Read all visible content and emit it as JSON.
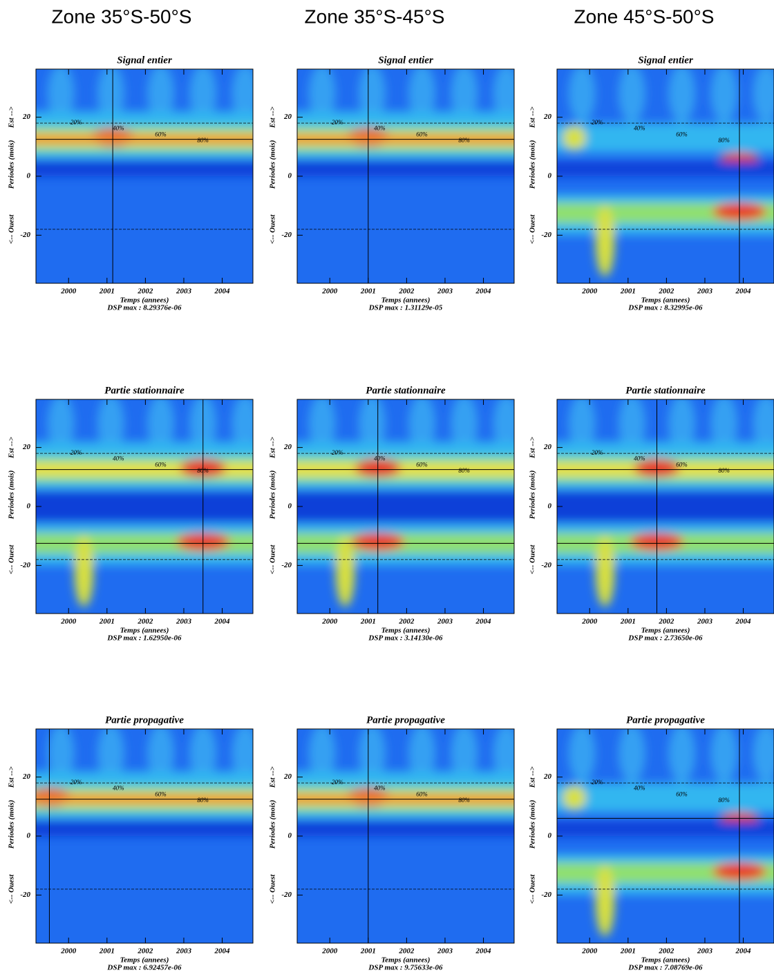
{
  "columns": [
    "Zone 35°S-50°S",
    "Zone 35°S-45°S",
    "Zone 45°S-50°S"
  ],
  "axes": {
    "xlim": [
      1999.15,
      2004.8
    ],
    "xticks": [
      2000,
      2001,
      2002,
      2003,
      2004
    ],
    "ylim": [
      -36.3,
      36.3
    ],
    "yticks": [
      -20,
      0,
      20
    ],
    "xlabel": "Temps (annees)",
    "ylabel_west": "<-- Ouest",
    "ylabel": "Periodes (mois)",
    "ylabel_east": "Est -->",
    "dashed_periods": [
      -18,
      18
    ]
  },
  "contour_levels": [
    {
      "value": 20,
      "label": "20%"
    },
    {
      "value": 40,
      "label": "40%"
    },
    {
      "value": 60,
      "label": "60%"
    },
    {
      "value": 80,
      "label": "80%"
    }
  ],
  "panels": [
    [
      {
        "title": "Signal entier",
        "dsp": "DSP max :  8.29376e-06",
        "vline": 2001.15,
        "hlines": [
          12.5
        ]
      },
      {
        "title": "Signal entier",
        "dsp": "DSP max :  1.31129e-05",
        "vline": 2001.0,
        "hlines": [
          12.5
        ]
      },
      {
        "title": "Signal entier",
        "dsp": "DSP max :  8.32995e-06",
        "vline": 2003.9,
        "hlines": []
      }
    ],
    [
      {
        "title": "Partie stationnaire",
        "dsp": "DSP max :  1.62950e-06",
        "vline": 2003.5,
        "hlines": [
          12.5,
          -12.5
        ]
      },
      {
        "title": "Partie stationnaire",
        "dsp": "DSP max :  3.14130e-06",
        "vline": 2001.25,
        "hlines": [
          12.5,
          -12.5
        ]
      },
      {
        "title": "Partie stationnaire",
        "dsp": "DSP max :  2.73650e-06",
        "vline": 2001.75,
        "hlines": [
          12.5,
          -12.5
        ]
      }
    ],
    [
      {
        "title": "Partie propagative",
        "dsp": "DSP max :  6.92457e-06",
        "vline": 1999.5,
        "hlines": [
          12.5
        ]
      },
      {
        "title": "Partie propagative",
        "dsp": "DSP max :  9.75633e-06",
        "vline": 2001.0,
        "hlines": [
          12.5
        ]
      },
      {
        "title": "Partie propagative",
        "dsp": "DSP max :  7.08769e-06",
        "vline": 2003.9,
        "hlines": [
          6
        ]
      }
    ]
  ]
}
